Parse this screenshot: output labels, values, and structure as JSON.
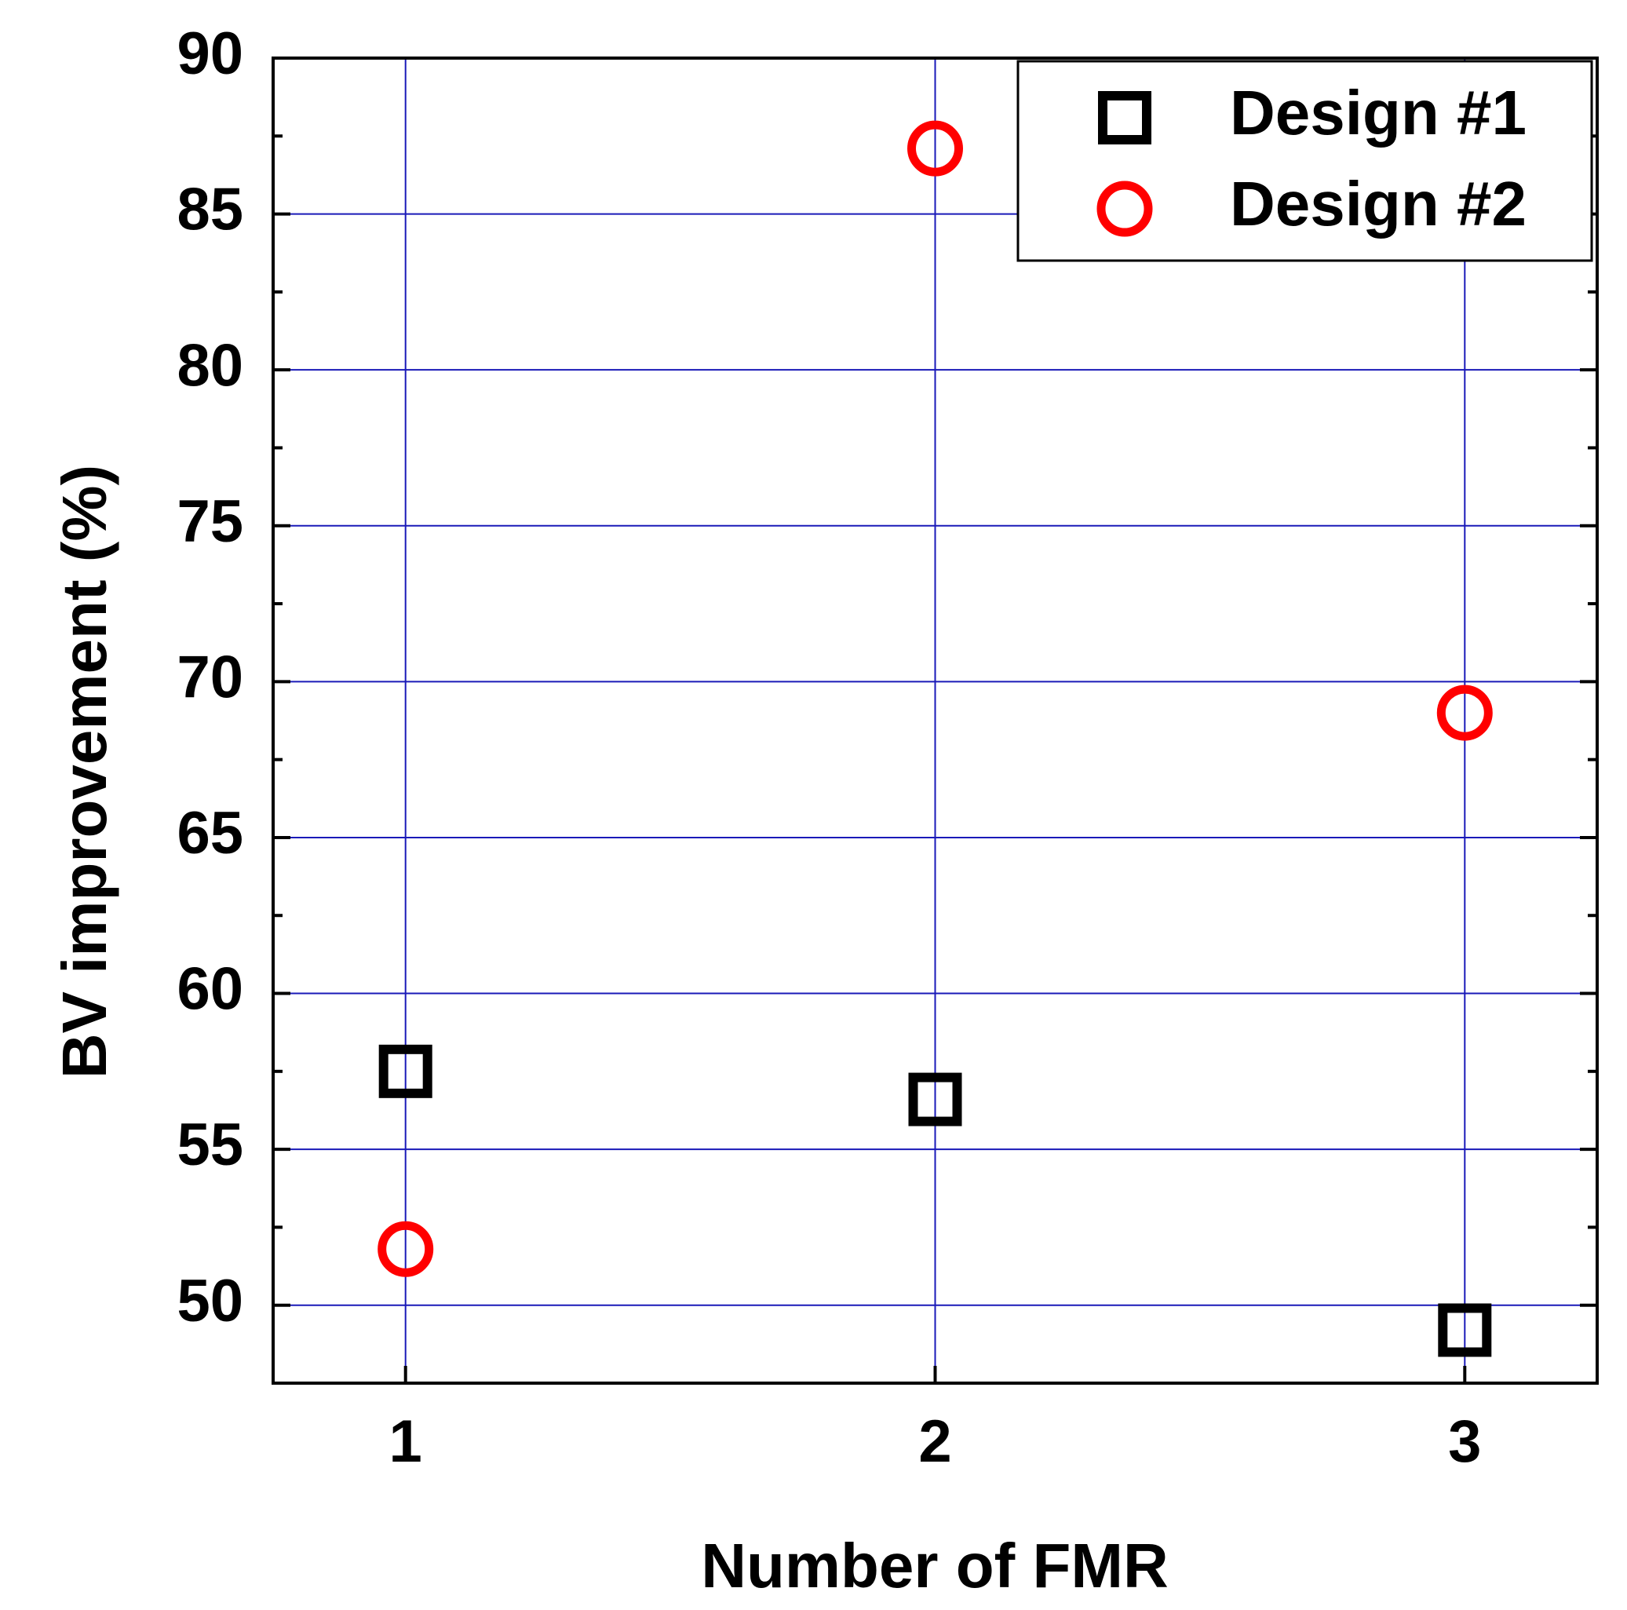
{
  "chart_data": {
    "type": "scatter",
    "x_label": "Number of FMR",
    "y_label": "BV improvement (%)",
    "xlim": [
      0.75,
      3.25
    ],
    "xticks": [
      1,
      2,
      3
    ],
    "ylim": [
      47.5,
      90
    ],
    "yticks": [
      50,
      55,
      60,
      65,
      70,
      75,
      80,
      85,
      90
    ],
    "yminorticks": [
      52.5,
      57.5,
      62.5,
      67.5,
      72.5,
      77.5,
      82.5,
      87.5
    ],
    "grid": true,
    "grid_color": "#1a1ab8",
    "legend": "upper right",
    "series": [
      {
        "name": "Design #1",
        "marker": "square",
        "color": "#000000",
        "x": [
          1,
          2,
          3
        ],
        "values": [
          57.5,
          56.6,
          49.2
        ]
      },
      {
        "name": "Design #2",
        "marker": "circle",
        "color": "#ff0000",
        "x": [
          1,
          2,
          3
        ],
        "values": [
          51.8,
          87.1,
          69.0
        ]
      }
    ]
  }
}
